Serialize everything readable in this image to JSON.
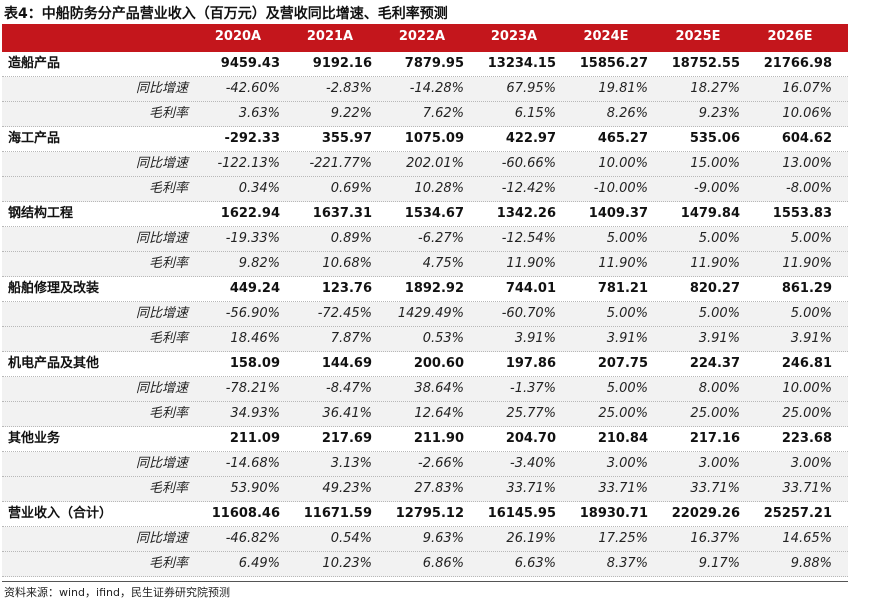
{
  "title": "表4：中船防务分产品营业收入（百万元）及营收同比增速、毛利率预测",
  "header": {
    "first": "",
    "years": [
      "2020A",
      "2021A",
      "2022A",
      "2023A",
      "2024E",
      "2025E",
      "2026E"
    ]
  },
  "rows": [
    {
      "kind": "main",
      "label": "造船产品",
      "values": [
        "9459.43",
        "9192.16",
        "7879.95",
        "13234.15",
        "15856.27",
        "18752.55",
        "21766.98"
      ]
    },
    {
      "kind": "sub",
      "label": "同比增速",
      "values": [
        "-42.60%",
        "-2.83%",
        "-14.28%",
        "67.95%",
        "19.81%",
        "18.27%",
        "16.07%"
      ]
    },
    {
      "kind": "sub",
      "label": "毛利率",
      "values": [
        "3.63%",
        "9.22%",
        "7.62%",
        "6.15%",
        "8.26%",
        "9.23%",
        "10.06%"
      ]
    },
    {
      "kind": "main",
      "label": "海工产品",
      "values": [
        "-292.33",
        "355.97",
        "1075.09",
        "422.97",
        "465.27",
        "535.06",
        "604.62"
      ]
    },
    {
      "kind": "sub",
      "label": "同比增速",
      "values": [
        "-122.13%",
        "-221.77%",
        "202.01%",
        "-60.66%",
        "10.00%",
        "15.00%",
        "13.00%"
      ]
    },
    {
      "kind": "sub",
      "label": "毛利率",
      "values": [
        "0.34%",
        "0.69%",
        "10.28%",
        "-12.42%",
        "-10.00%",
        "-9.00%",
        "-8.00%"
      ]
    },
    {
      "kind": "main",
      "label": "钢结构工程",
      "values": [
        "1622.94",
        "1637.31",
        "1534.67",
        "1342.26",
        "1409.37",
        "1479.84",
        "1553.83"
      ]
    },
    {
      "kind": "sub",
      "label": "同比增速",
      "values": [
        "-19.33%",
        "0.89%",
        "-6.27%",
        "-12.54%",
        "5.00%",
        "5.00%",
        "5.00%"
      ]
    },
    {
      "kind": "sub",
      "label": "毛利率",
      "values": [
        "9.82%",
        "10.68%",
        "4.75%",
        "11.90%",
        "11.90%",
        "11.90%",
        "11.90%"
      ]
    },
    {
      "kind": "main",
      "label": "船舶修理及改装",
      "values": [
        "449.24",
        "123.76",
        "1892.92",
        "744.01",
        "781.21",
        "820.27",
        "861.29"
      ]
    },
    {
      "kind": "sub",
      "label": "同比增速",
      "values": [
        "-56.90%",
        "-72.45%",
        "1429.49%",
        "-60.70%",
        "5.00%",
        "5.00%",
        "5.00%"
      ]
    },
    {
      "kind": "sub",
      "label": "毛利率",
      "values": [
        "18.46%",
        "7.87%",
        "0.53%",
        "3.91%",
        "3.91%",
        "3.91%",
        "3.91%"
      ]
    },
    {
      "kind": "main",
      "label": "机电产品及其他",
      "values": [
        "158.09",
        "144.69",
        "200.60",
        "197.86",
        "207.75",
        "224.37",
        "246.81"
      ]
    },
    {
      "kind": "sub",
      "label": "同比增速",
      "values": [
        "-78.21%",
        "-8.47%",
        "38.64%",
        "-1.37%",
        "5.00%",
        "8.00%",
        "10.00%"
      ]
    },
    {
      "kind": "sub",
      "label": "毛利率",
      "values": [
        "34.93%",
        "36.41%",
        "12.64%",
        "25.77%",
        "25.00%",
        "25.00%",
        "25.00%"
      ]
    },
    {
      "kind": "main",
      "label": "其他业务",
      "values": [
        "211.09",
        "217.69",
        "211.90",
        "204.70",
        "210.84",
        "217.16",
        "223.68"
      ]
    },
    {
      "kind": "sub",
      "label": "同比增速",
      "values": [
        "-14.68%",
        "3.13%",
        "-2.66%",
        "-3.40%",
        "3.00%",
        "3.00%",
        "3.00%"
      ]
    },
    {
      "kind": "sub",
      "label": "毛利率",
      "values": [
        "53.90%",
        "49.23%",
        "27.83%",
        "33.71%",
        "33.71%",
        "33.71%",
        "33.71%"
      ]
    },
    {
      "kind": "main",
      "label": "营业收入（合计）",
      "values": [
        "11608.46",
        "11671.59",
        "12795.12",
        "16145.95",
        "18930.71",
        "22029.26",
        "25257.21"
      ]
    },
    {
      "kind": "sub",
      "label": "同比增速",
      "values": [
        "-46.82%",
        "0.54%",
        "9.63%",
        "26.19%",
        "17.25%",
        "16.37%",
        "14.65%"
      ]
    },
    {
      "kind": "sub",
      "label": "毛利率",
      "values": [
        "6.49%",
        "10.23%",
        "6.86%",
        "6.63%",
        "8.37%",
        "9.17%",
        "9.88%"
      ]
    }
  ],
  "source": "资料来源：wind，ifind，民生证券研究院预测",
  "colors": {
    "header_bg": "#c4161c",
    "header_text": "#ffffff",
    "sub_row_bg": "#f2f2f2"
  }
}
